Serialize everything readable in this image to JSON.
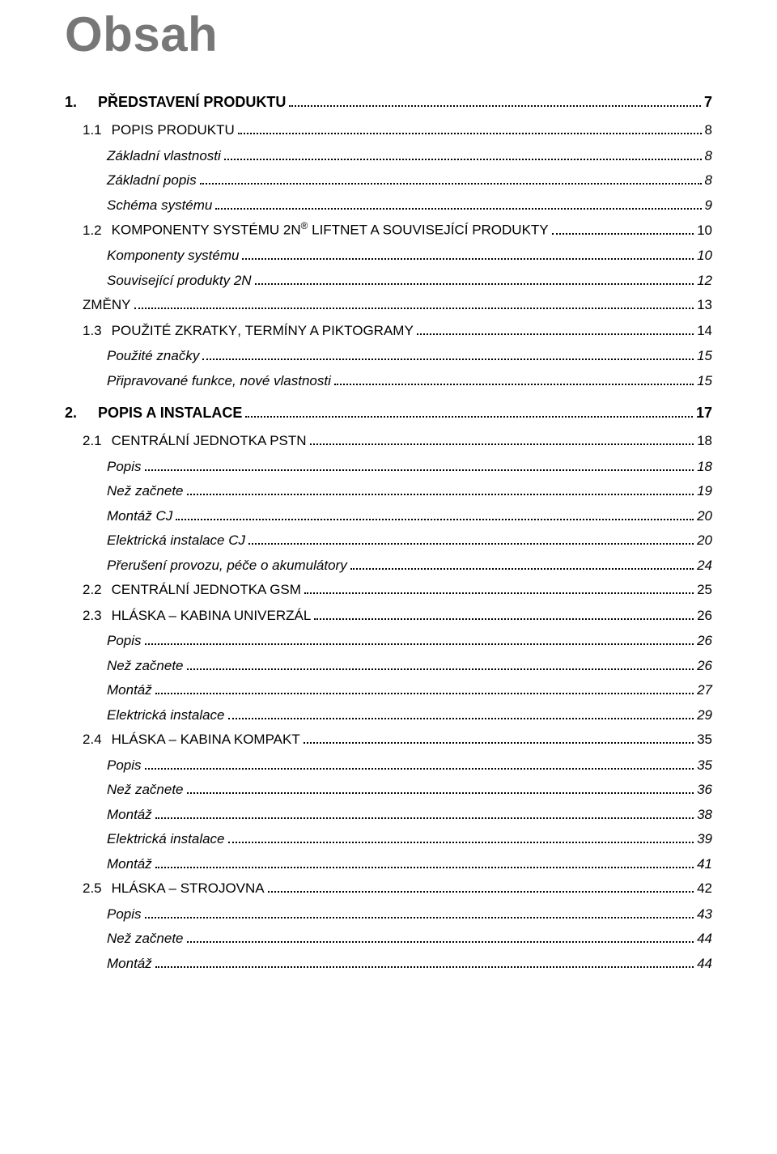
{
  "doc": {
    "title": "Obsah"
  },
  "toc": {
    "s1": {
      "num": "1.",
      "title": "PŘEDSTAVENÍ PRODUKTU",
      "page": "7",
      "s11": {
        "num": "1.1",
        "label_pre": "P",
        "label_sc": "OPIS PRODUKTU",
        "page": "8",
        "i1": {
          "label": "Základní vlastnosti",
          "page": "8"
        },
        "i2": {
          "label": "Základní popis",
          "page": "8"
        },
        "i3": {
          "label": "Schéma systému",
          "page": "9"
        }
      },
      "s12": {
        "num": "1.2",
        "label_pre": "K",
        "label_sc": "OMPONENTY SYSTÉMU ",
        "label_mid": "2N",
        "label_sup": "®",
        "label_post_pre": " L",
        "label_post_sc": "IFT",
        "label_post_mid": "N",
        "label_post_sc2": "ET A SOUVISEJÍCÍ PRODUKTY",
        "page": "10",
        "i1": {
          "label": "Komponenty systému",
          "page": "10"
        },
        "i2": {
          "label": "Související produkty 2N",
          "page": "12"
        }
      },
      "s1z": {
        "label_pre": "Z",
        "label_sc": "MĚNY",
        "page": "13"
      },
      "s13": {
        "num": "1.3",
        "label_pre": "P",
        "label_sc": "OUŽITÉ ZKRATKY",
        "label_mid": ", ",
        "label_sc2": "TERMÍNY A PIKTOGRAMY",
        "page": "14",
        "i1": {
          "label": "Použité značky",
          "page": "15"
        },
        "i2": {
          "label": "Připravované funkce, nové vlastnosti",
          "page": "15"
        }
      }
    },
    "s2": {
      "num": "2.",
      "title": "POPIS A INSTALACE",
      "page": "17",
      "s21": {
        "num": "2.1",
        "label_pre": "C",
        "label_sc": "ENTRÁLNÍ JEDNOTKA ",
        "label_post": "PSTN",
        "page": "18",
        "i1": {
          "label": "Popis",
          "page": "18"
        },
        "i2": {
          "label": "Než začnete",
          "page": "19"
        },
        "i3": {
          "label": "Montáž CJ",
          "page": "20"
        },
        "i4": {
          "label": "Elektrická instalace CJ",
          "page": "20"
        },
        "i5": {
          "label": "Přerušení provozu, péče o akumulátory",
          "page": "24"
        }
      },
      "s22": {
        "num": "2.2",
        "label_pre": "C",
        "label_sc": "ENTRÁLNÍ JEDNOTKA ",
        "label_post": "GSM",
        "page": "25"
      },
      "s23": {
        "num": "2.3",
        "label_pre": "H",
        "label_sc": "LÁSKA ",
        "label_mid": "– ",
        "label_sc2": "KABINA UNIVERZÁL",
        "page": "26",
        "i1": {
          "label": "Popis",
          "page": "26"
        },
        "i2": {
          "label": "Než začnete",
          "page": "26"
        },
        "i3": {
          "label": "Montáž",
          "page": "27"
        },
        "i4": {
          "label": "Elektrická instalace",
          "page": "29"
        }
      },
      "s24": {
        "num": "2.4",
        "label_pre": "H",
        "label_sc": "LÁSKA ",
        "label_mid": "– ",
        "label_sc2": "KABINA KOMPAKT",
        "page": "35",
        "i1": {
          "label": "Popis",
          "page": "35"
        },
        "i2": {
          "label": "Než začnete",
          "page": "36"
        },
        "i3": {
          "label": "Montáž",
          "page": "38"
        },
        "i4": {
          "label": "Elektrická instalace",
          "page": "39"
        },
        "i5": {
          "label": "Montáž",
          "page": "41"
        }
      },
      "s25": {
        "num": "2.5",
        "label_pre": "H",
        "label_sc": "LÁSKA ",
        "label_mid": "– ",
        "label_sc2": "STROJOVNA",
        "page": "42",
        "i1": {
          "label": "Popis",
          "page": "43"
        },
        "i2": {
          "label": "Než začnete",
          "page": "44"
        },
        "i3": {
          "label": "Montáž",
          "page": "44"
        }
      }
    }
  }
}
